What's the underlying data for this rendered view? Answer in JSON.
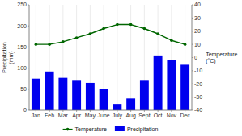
{
  "chart_data": {
    "type": "bar",
    "categories": [
      "Jan",
      "Feb",
      "Mar",
      "Apr",
      "May",
      "June",
      "July",
      "Aug",
      "Sept",
      "Oct",
      "Nov",
      "Dec"
    ],
    "series": [
      {
        "name": "Temperature",
        "type": "line",
        "axis": "y2",
        "color": "#006600",
        "marker": "circle",
        "values": [
          10,
          10,
          12,
          15,
          18,
          22,
          25,
          25,
          22,
          18,
          13,
          10
        ]
      },
      {
        "name": "Precipitation",
        "type": "bar",
        "color": "#0000ee",
        "values": [
          75,
          92,
          77,
          70,
          65,
          50,
          15,
          28,
          70,
          130,
          120,
          108
        ]
      }
    ],
    "ylabel": "Precipitation\n(mm)",
    "y2label": "Temperature\n(°C)",
    "ylim": [
      0,
      250
    ],
    "yticks": [
      0,
      50,
      100,
      150,
      200,
      250
    ],
    "y2lim": [
      -40,
      40
    ],
    "y2ticks": [
      -40,
      -30,
      -20,
      -10,
      0,
      10,
      20,
      30,
      40
    ],
    "grid": "x",
    "legend": "bottom"
  }
}
